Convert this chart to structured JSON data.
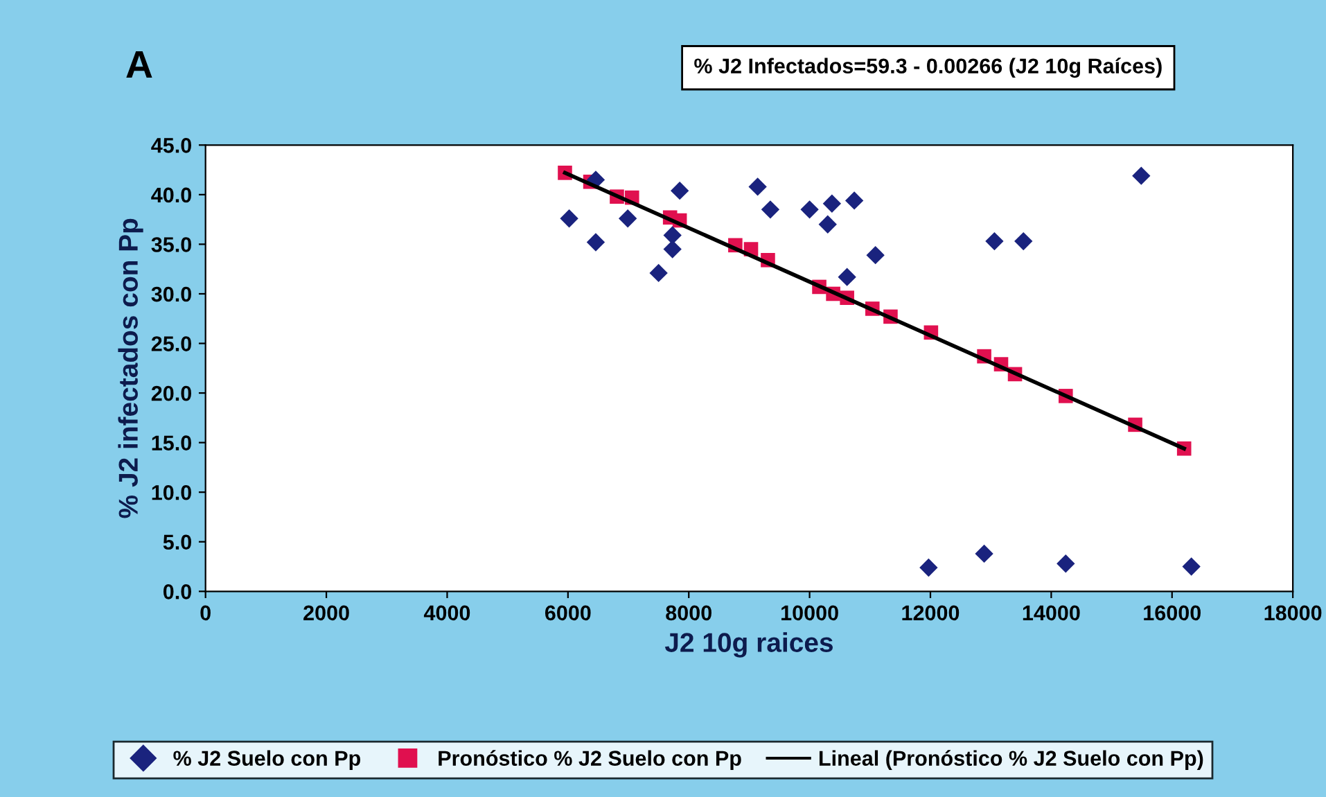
{
  "chart_data": {
    "type": "scatter",
    "title": "A",
    "annotations": [
      "% J2 Infectados=59.3 - 0.00266 (J2 10g Raíces)"
    ],
    "xlabel": "J2 10g raices",
    "ylabel": "% J2 infectados con Pp",
    "xlim": [
      0,
      18000
    ],
    "xticks": [
      0,
      2000,
      4000,
      6000,
      8000,
      10000,
      12000,
      14000,
      16000,
      18000
    ],
    "ylim": [
      0,
      45
    ],
    "yticks": [
      {
        "value": 0,
        "label": "0.0"
      },
      {
        "value": 5,
        "label": "5.0"
      },
      {
        "value": 10,
        "label": "10.0"
      },
      {
        "value": 15,
        "label": "15.0"
      },
      {
        "value": 20,
        "label": "20.0"
      },
      {
        "value": 25,
        "label": "25.0"
      },
      {
        "value": 30,
        "label": "30.0"
      },
      {
        "value": 35,
        "label": "35.0"
      },
      {
        "value": 40,
        "label": "40.0"
      },
      {
        "value": 45,
        "label": "45.0"
      }
    ],
    "grid": false,
    "legend": "bottom",
    "series": [
      {
        "name": "% J2 Suelo con Pp",
        "marker": "diamond",
        "color": "#1a237e",
        "x": [
          6020,
          6460,
          6460,
          6990,
          7500,
          7730,
          7730,
          7850,
          9140,
          9350,
          10000,
          10300,
          10370,
          10740,
          10620,
          11090,
          11970,
          12890,
          13060,
          13540,
          14240,
          15490,
          16320
        ],
        "values": [
          37.6,
          41.5,
          35.2,
          37.6,
          32.1,
          35.9,
          34.5,
          40.4,
          40.8,
          38.5,
          38.5,
          37.0,
          39.1,
          39.4,
          31.7,
          33.9,
          2.4,
          3.8,
          35.3,
          35.3,
          2.8,
          41.9,
          2.5
        ]
      },
      {
        "name": "Pronóstico % J2 Suelo con Pp",
        "marker": "square",
        "color": "#e0104f",
        "x": [
          5950,
          6370,
          6810,
          7060,
          7690,
          7850,
          8770,
          9030,
          9310,
          10160,
          10390,
          10620,
          11040,
          11340,
          12010,
          12890,
          13170,
          13400,
          14240,
          15390,
          16200
        ],
        "values": [
          42.2,
          41.3,
          39.8,
          39.7,
          37.7,
          37.4,
          34.9,
          34.5,
          33.4,
          30.7,
          30.0,
          29.6,
          28.5,
          27.7,
          26.1,
          23.7,
          22.9,
          21.9,
          19.7,
          16.8,
          14.4
        ]
      },
      {
        "name": "Lineal (Pronóstico % J2 Suelo con Pp)",
        "type": "line",
        "marker": "none",
        "line_style": "solid",
        "color": "#000000",
        "x": [
          5950,
          16200
        ],
        "values": [
          42.2,
          14.4
        ]
      }
    ]
  }
}
